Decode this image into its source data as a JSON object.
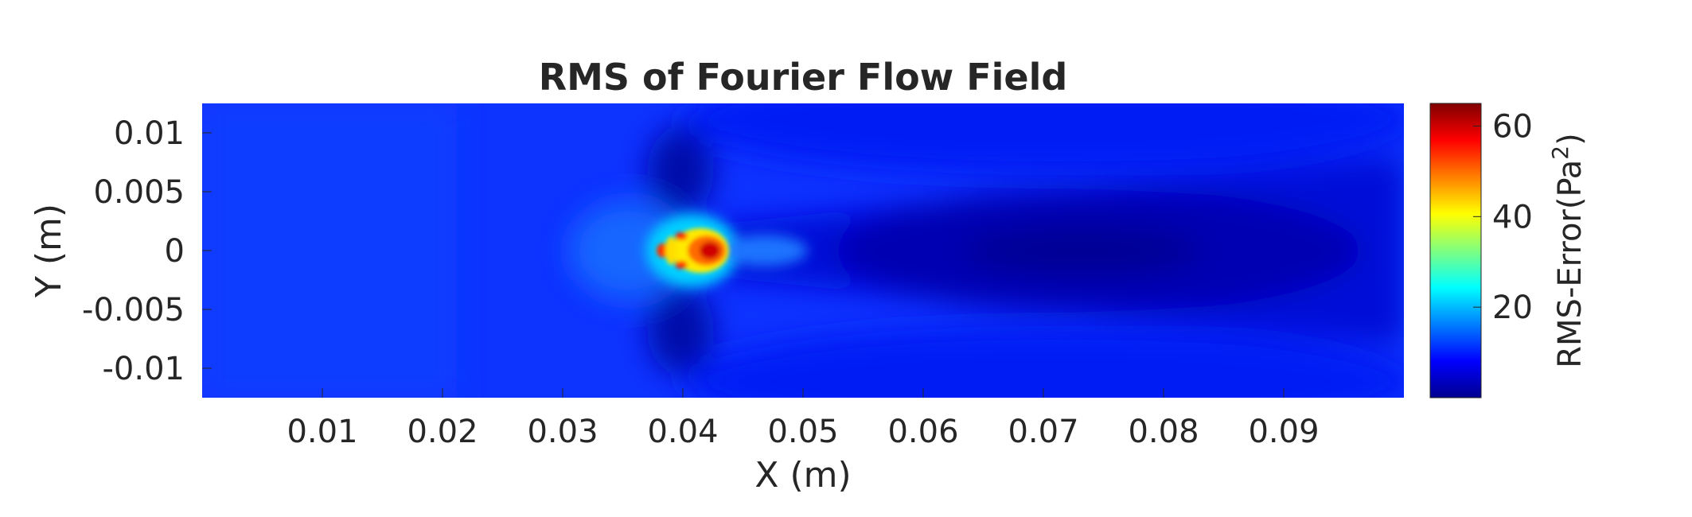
{
  "chart_data": {
    "type": "heatmap",
    "title": "RMS of Fourier Flow Field",
    "xlabel": "X (m)",
    "ylabel": "Y (m)",
    "xlim": [
      0,
      0.1
    ],
    "ylim": [
      -0.0125,
      0.0125
    ],
    "x_ticks": [
      0.01,
      0.02,
      0.03,
      0.04,
      0.05,
      0.06,
      0.07,
      0.08,
      0.09
    ],
    "x_tick_labels": [
      "0.01",
      "0.02",
      "0.03",
      "0.04",
      "0.05",
      "0.06",
      "0.07",
      "0.08",
      "0.09"
    ],
    "y_ticks": [
      0.01,
      0.005,
      0,
      -0.005,
      -0.01
    ],
    "y_tick_labels": [
      "0.01",
      "0.005",
      "0",
      "-0.005",
      "-0.01"
    ],
    "colormap": "jet",
    "colorbar": {
      "label_base": "RMS-Error(Pa",
      "label_sup": "2",
      "label_end": ")",
      "range": [
        0,
        65
      ],
      "ticks": [
        20,
        40,
        60
      ],
      "tick_labels": [
        "20",
        "40",
        "60"
      ]
    },
    "field_features": [
      {
        "kind": "peak",
        "x": 0.0425,
        "y": 0,
        "value": 62
      },
      {
        "kind": "peak",
        "x": 0.039,
        "y": 0,
        "value": 52
      },
      {
        "kind": "low_wake",
        "x_range": [
          0.05,
          0.095
        ],
        "y": 0,
        "value": 1
      }
    ]
  }
}
